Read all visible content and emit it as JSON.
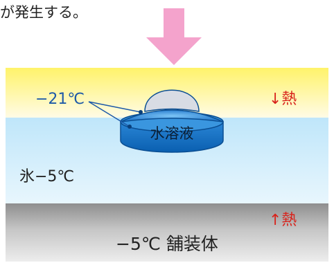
{
  "top_text": "が発生する。",
  "labels": {
    "temp_solution": "−21℃",
    "solution": "水溶液",
    "ice": "氷−5℃",
    "heat_down": "↓熱",
    "heat_up": "↑熱",
    "pavement": "−5℃ 舗装体"
  },
  "colors": {
    "arrow": "#f4a3cc",
    "heat_text": "#d8231c",
    "temp_text": "#1e5aa8",
    "layer_gray": "#bdbdbd"
  }
}
